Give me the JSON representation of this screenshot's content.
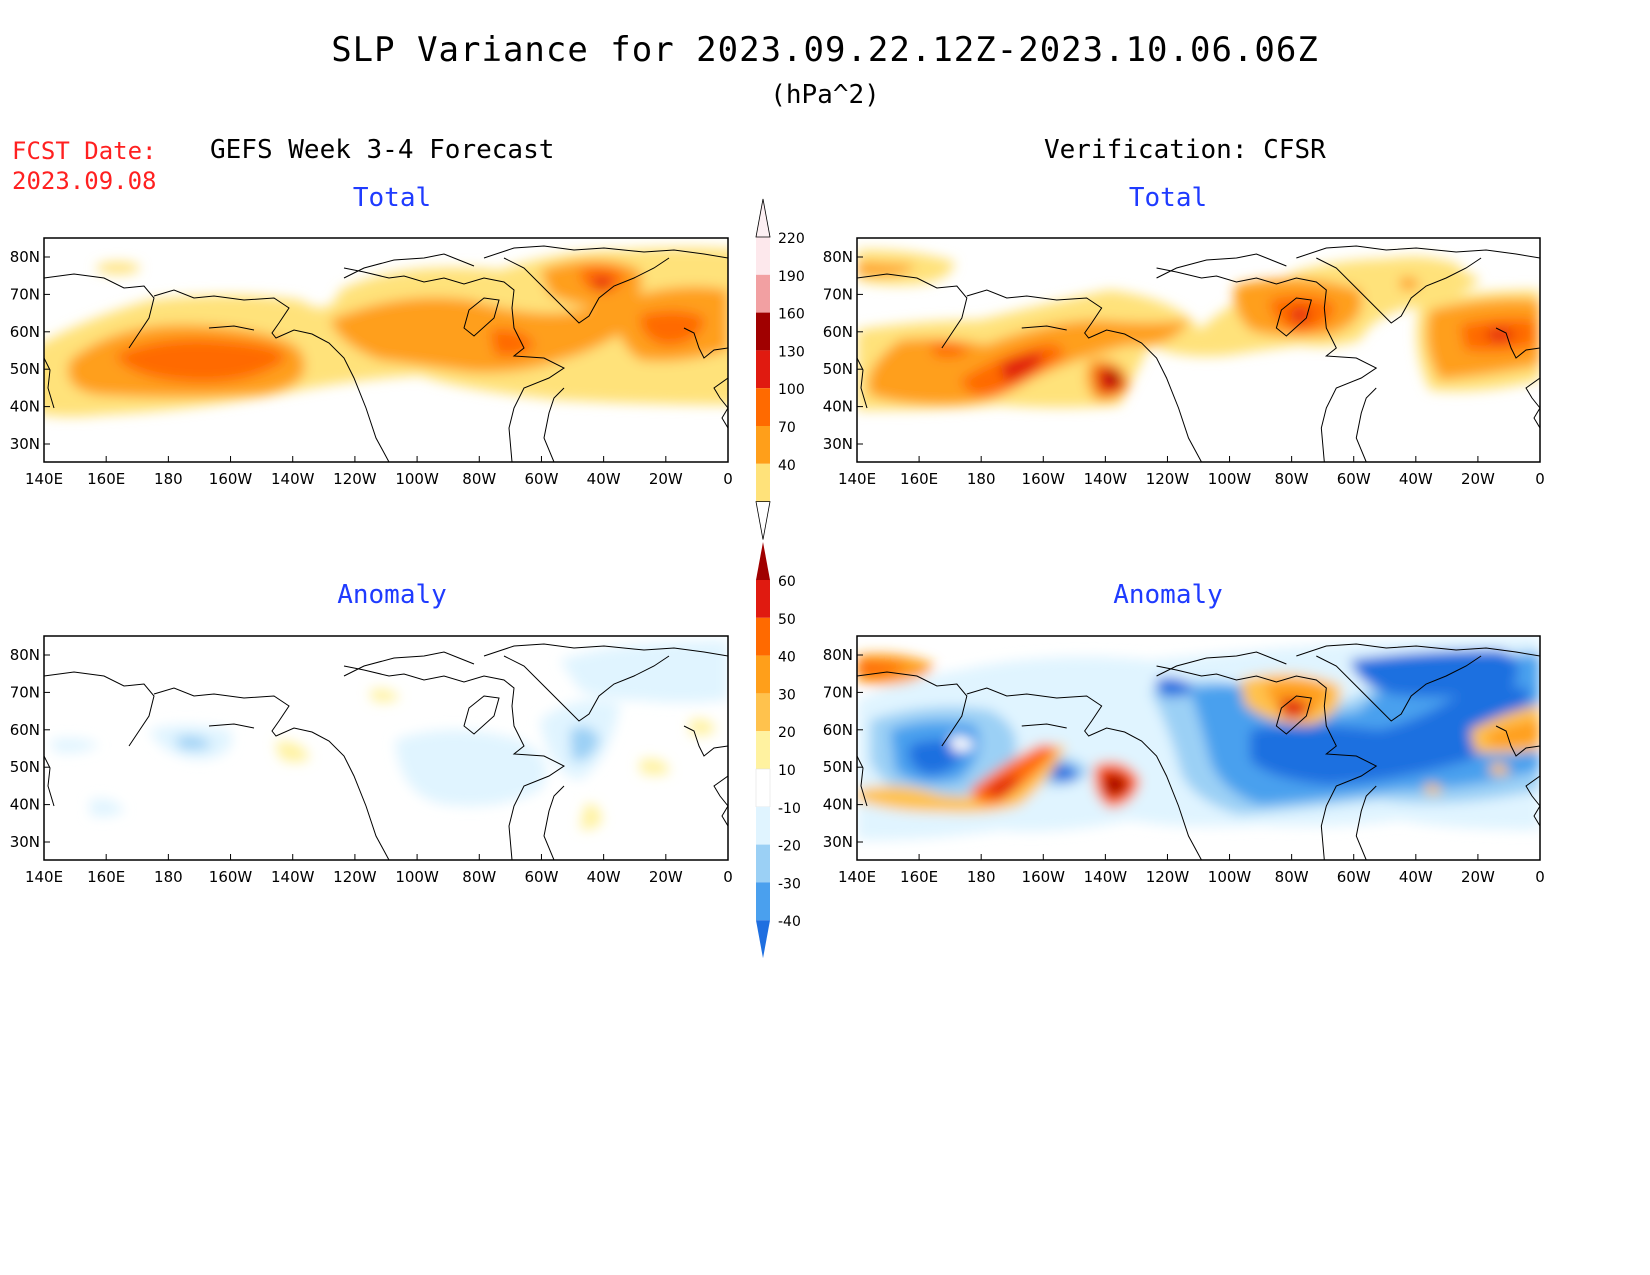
{
  "header": {
    "title": "SLP Variance for 2023.09.22.12Z-2023.10.06.06Z",
    "units": "(hPa^2)",
    "fcst_date_label": "FCST Date:",
    "fcst_date_value": "2023.09.08"
  },
  "panels": {
    "left_title": "GEFS Week 3-4 Forecast",
    "right_title": "Verification: CFSR",
    "top_subtitle": "Total",
    "bottom_subtitle": "Anomaly"
  },
  "axes": {
    "lat_labels": [
      "80N",
      "70N",
      "60N",
      "50N",
      "40N",
      "30N"
    ],
    "lon_labels": [
      "140E",
      "160E",
      "180",
      "160W",
      "140W",
      "120W",
      "100W",
      "80W",
      "60W",
      "40W",
      "20W",
      "0"
    ]
  },
  "colorbars": {
    "total": {
      "labels": [
        "220",
        "190",
        "160",
        "130",
        "100",
        "70",
        "40"
      ],
      "colors": [
        "#fde8ec",
        "#f2a0a2",
        "#a00000",
        "#e01a10",
        "#ff6a00",
        "#ff9f1a",
        "#ffe27a"
      ]
    },
    "anomaly": {
      "labels": [
        "60",
        "50",
        "40",
        "30",
        "20",
        "10",
        "-10",
        "-20",
        "-30",
        "-40"
      ],
      "colors": [
        "#a00000",
        "#e01a10",
        "#ff6a00",
        "#ff9f1a",
        "#ffc24d",
        "#fff2a0",
        "#ffffff",
        "#e0f4ff",
        "#9bd0f5",
        "#4aa0ee",
        "#1f6fe0"
      ]
    }
  },
  "colors": {
    "title_red": "#ff2020",
    "subtitle_blue": "#1f3bff"
  }
}
